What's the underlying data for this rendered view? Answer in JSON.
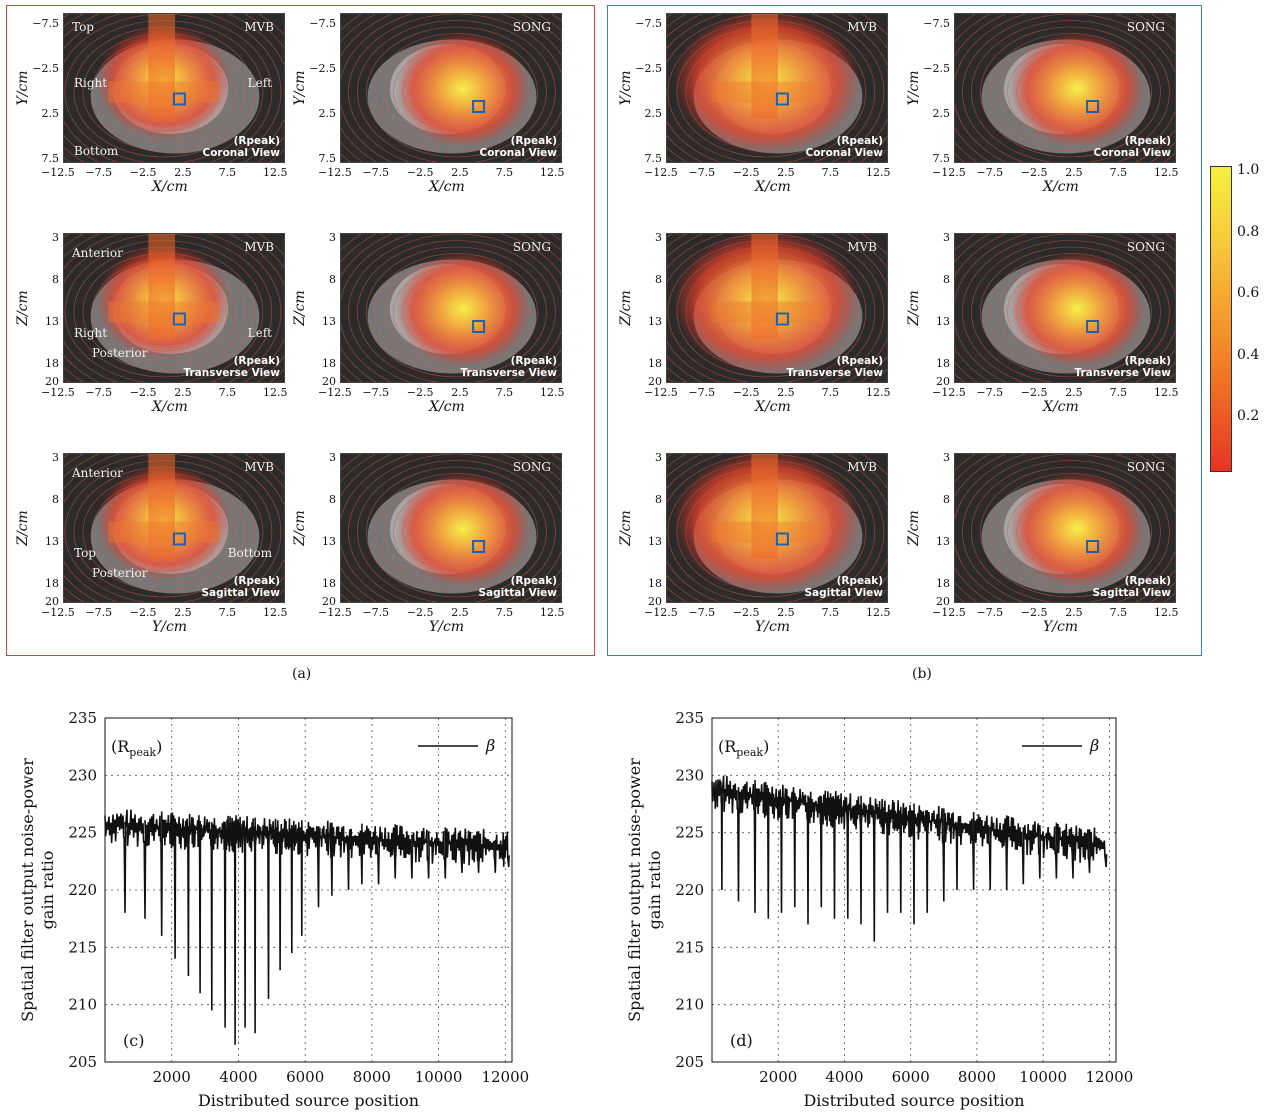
{
  "panels_a": [
    {
      "method": "MVB",
      "view_label": "Coronal View",
      "rpeak": "(Rpeak)",
      "xlabel": "X/cm",
      "ylabel": "Y/cm",
      "xticks": [
        "−12.5",
        "−7.5",
        "−2.5",
        "2.5",
        "7.5",
        "12.5"
      ],
      "yticks": [
        "−7.5",
        "−2.5",
        "2.5",
        "7.5"
      ],
      "orient": [
        "Top",
        "Right",
        "Left",
        "Bottom"
      ]
    },
    {
      "method": "SONG",
      "view_label": "Coronal View",
      "rpeak": "(Rpeak)",
      "xlabel": "X/cm",
      "ylabel": "Y/cm",
      "xticks": [
        "−12.5",
        "−7.5",
        "−2.5",
        "2.5",
        "7.5",
        "12.5"
      ],
      "yticks": [
        "−7.5",
        "−2.5",
        "2.5",
        "7.5"
      ],
      "orient": []
    },
    {
      "method": "MVB",
      "view_label": "Transverse View",
      "rpeak": "(Rpeak)",
      "xlabel": "X/cm",
      "ylabel": "Z/cm",
      "xticks": [
        "−12.5",
        "−7.5",
        "−2.5",
        "2.5",
        "7.5",
        "12.5"
      ],
      "yticks": [
        "3",
        "8",
        "13",
        "18",
        "20"
      ],
      "orient": [
        "Anterior",
        "Right",
        "Left",
        "Posterior"
      ]
    },
    {
      "method": "SONG",
      "view_label": "Transverse View",
      "rpeak": "(Rpeak)",
      "xlabel": "X/cm",
      "ylabel": "Z/cm",
      "xticks": [
        "−12.5",
        "−7.5",
        "−2.5",
        "2.5",
        "7.5",
        "12.5"
      ],
      "yticks": [
        "3",
        "8",
        "13",
        "18",
        "20"
      ],
      "orient": []
    },
    {
      "method": "MVB",
      "view_label": "Sagittal View",
      "rpeak": "(Rpeak)",
      "xlabel": "Y/cm",
      "ylabel": "Z/cm",
      "xticks": [
        "−12.5",
        "−7.5",
        "−2.5",
        "2.5",
        "7.5",
        "12.5"
      ],
      "yticks": [
        "3",
        "8",
        "13",
        "18",
        "20"
      ],
      "orient": [
        "Anterior",
        "Top",
        "Bottom",
        "Posterior"
      ]
    },
    {
      "method": "SONG",
      "view_label": "Sagittal View",
      "rpeak": "(Rpeak)",
      "xlabel": "Y/cm",
      "ylabel": "Z/cm",
      "xticks": [
        "−12.5",
        "−7.5",
        "−2.5",
        "2.5",
        "7.5",
        "12.5"
      ],
      "yticks": [
        "3",
        "8",
        "13",
        "18",
        "20"
      ],
      "orient": []
    }
  ],
  "panels_b": [
    {
      "method": "MVB",
      "view_label": "Coronal View",
      "rpeak": "(Rpeak)",
      "xlabel": "X/cm",
      "ylabel": "Y/cm"
    },
    {
      "method": "SONG",
      "view_label": "Coronal View",
      "rpeak": "(Rpeak)",
      "xlabel": "X/cm",
      "ylabel": "Y/cm"
    },
    {
      "method": "MVB",
      "view_label": "Transverse View",
      "rpeak": "(Rpeak)",
      "xlabel": "X/cm",
      "ylabel": "Z/cm"
    },
    {
      "method": "SONG",
      "view_label": "Transverse View",
      "rpeak": "(Rpeak)",
      "xlabel": "X/cm",
      "ylabel": "Z/cm"
    },
    {
      "method": "MVB",
      "view_label": "Sagittal View",
      "rpeak": "(Rpeak)",
      "xlabel": "Y/cm",
      "ylabel": "Z/cm"
    },
    {
      "method": "SONG",
      "view_label": "Sagittal View",
      "rpeak": "(Rpeak)",
      "xlabel": "Y/cm",
      "ylabel": "Z/cm"
    }
  ],
  "captions": {
    "a": "(a)",
    "b": "(b)"
  },
  "colorbar": {
    "ticks": [
      "1.0",
      "0.8",
      "0.6",
      "0.4",
      "0.2"
    ],
    "colors": [
      "#f5f03c",
      "#e63424"
    ]
  },
  "chart_data": [
    {
      "type": "line",
      "panel_label": "(c)",
      "annotation": "(R",
      "annotation_sub": "peak",
      "annotation_close": ")",
      "legend": "β",
      "xlabel": "Distributed source position",
      "ylabel_line1": "Spatial filter output noise-power",
      "ylabel_line2": "gain ratio",
      "xlim": [
        0,
        12200
      ],
      "ylim": [
        205,
        235
      ],
      "xticks": [
        2000,
        4000,
        6000,
        8000,
        10000,
        12000
      ],
      "yticks": [
        205,
        210,
        215,
        220,
        225,
        230,
        235
      ],
      "grid": true,
      "series": [
        {
          "name": "β",
          "baseline": 226.5,
          "dips": [
            [
              600,
              218
            ],
            [
              1200,
              217.5
            ],
            [
              1700,
              216
            ],
            [
              2100,
              214
            ],
            [
              2500,
              212.5
            ],
            [
              2850,
              211
            ],
            [
              3200,
              209.5
            ],
            [
              3600,
              208
            ],
            [
              3900,
              206.5
            ],
            [
              4200,
              208
            ],
            [
              4500,
              207.5
            ],
            [
              4900,
              210.5
            ],
            [
              5250,
              213
            ],
            [
              5600,
              214.5
            ],
            [
              5900,
              216
            ],
            [
              6400,
              218.5
            ],
            [
              6800,
              219.5
            ],
            [
              7300,
              220
            ],
            [
              7700,
              220.5
            ],
            [
              8200,
              220.5
            ],
            [
              8700,
              221
            ],
            [
              9200,
              221
            ],
            [
              9700,
              221
            ],
            [
              10200,
              221
            ],
            [
              10700,
              221.5
            ],
            [
              11200,
              221.5
            ],
            [
              11700,
              221.5
            ],
            [
              12100,
              222
            ]
          ]
        }
      ]
    },
    {
      "type": "line",
      "panel_label": "(d)",
      "annotation": "(R",
      "annotation_sub": "peak",
      "annotation_close": ")",
      "legend": "β",
      "xlabel": "Distributed source position",
      "ylabel_line1": "Spatial filter output noise-power",
      "ylabel_line2": "gain ratio",
      "xlim": [
        0,
        12200
      ],
      "ylim": [
        205,
        235
      ],
      "xticks": [
        2000,
        4000,
        6000,
        8000,
        10000,
        12000
      ],
      "yticks": [
        205,
        210,
        215,
        220,
        225,
        230,
        235
      ],
      "grid": true,
      "series": [
        {
          "name": "β",
          "baseline": 229.5,
          "dips": [
            [
              300,
              220
            ],
            [
              800,
              219
            ],
            [
              1300,
              218
            ],
            [
              1700,
              217.5
            ],
            [
              2100,
              218
            ],
            [
              2500,
              218.5
            ],
            [
              2900,
              217
            ],
            [
              3300,
              218.5
            ],
            [
              3700,
              217.5
            ],
            [
              4100,
              217.5
            ],
            [
              4500,
              217
            ],
            [
              4900,
              215.5
            ],
            [
              5300,
              218
            ],
            [
              5700,
              218
            ],
            [
              6100,
              217
            ],
            [
              6500,
              218
            ],
            [
              7000,
              219
            ],
            [
              7400,
              220
            ],
            [
              7900,
              220
            ],
            [
              8400,
              220
            ],
            [
              8900,
              220
            ],
            [
              9400,
              220.5
            ],
            [
              9900,
              221
            ],
            [
              10400,
              221
            ],
            [
              10900,
              221
            ],
            [
              11400,
              221.5
            ],
            [
              11900,
              222
            ]
          ]
        }
      ]
    }
  ]
}
